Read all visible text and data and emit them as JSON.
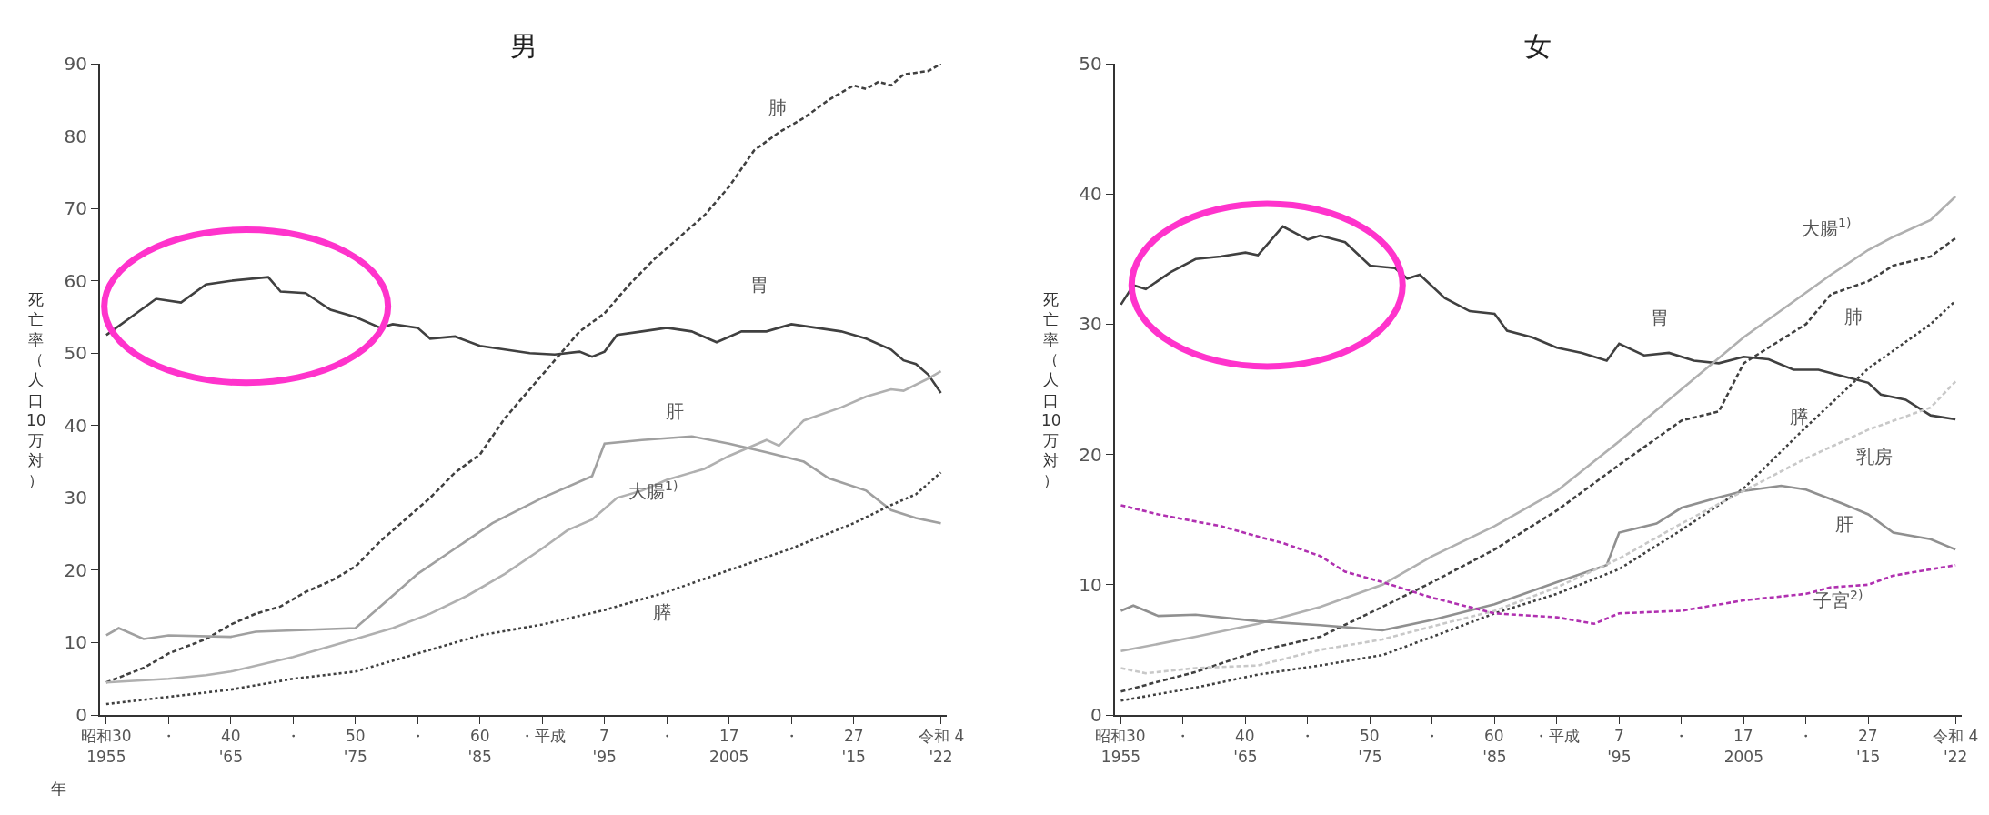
{
  "chart_data": [
    {
      "type": "line",
      "title": "男",
      "ylabel": "死亡率（人口10万対）",
      "xlim": [
        1954.5,
        2022.5
      ],
      "ylim": [
        0,
        90
      ],
      "yticks": [
        0,
        10,
        20,
        30,
        40,
        50,
        60,
        70,
        80,
        90
      ],
      "xticks": [
        1955,
        {
          "value": 1960,
          "label": null
        },
        {
          "value": 1965,
          "label": "'65"
        },
        {
          "value": 1970,
          "label": null
        },
        {
          "value": 1975,
          "label": "'75"
        },
        {
          "value": 1980,
          "label": null
        },
        {
          "value": 1985,
          "label": "'85"
        },
        {
          "value": 1990,
          "label": null
        },
        {
          "value": 1995,
          "label": "'95"
        },
        {
          "value": 2000,
          "label": null
        },
        2005,
        {
          "value": 2010,
          "label": null
        },
        {
          "value": 2015,
          "label": "'15"
        },
        {
          "value": 2022,
          "label": "'22"
        }
      ],
      "legend": false,
      "marker": "none",
      "series": [
        {
          "name": "胃",
          "color": "#404040",
          "line_style": "solid",
          "x": [
            1955,
            1957,
            1959,
            1961,
            1963,
            1965,
            1968,
            1969,
            1971,
            1973,
            1975,
            1977,
            1978,
            1980,
            1981,
            1983,
            1985,
            1987,
            1989,
            1991,
            1993,
            1994,
            1995,
            1996,
            1998,
            2000,
            2002,
            2004,
            2006,
            2008,
            2010,
            2012,
            2014,
            2016,
            2018,
            2019,
            2020,
            2021,
            2022
          ],
          "values": [
            52.5,
            55,
            57.5,
            57,
            59.5,
            60,
            60.5,
            58.5,
            58.3,
            56,
            55,
            53.5,
            54,
            53.5,
            52,
            52.3,
            51,
            50.5,
            50,
            49.8,
            50.2,
            49.5,
            50.2,
            52.5,
            53,
            53.5,
            53,
            51.5,
            53,
            53,
            54,
            53.5,
            53,
            52,
            50.5,
            49,
            48.5,
            47,
            44.5
          ]
        },
        {
          "name": "肺",
          "color": "#404040",
          "line_style": "dashed",
          "x": [
            1955,
            1958,
            1960,
            1963,
            1965,
            1967,
            1969,
            1971,
            1973,
            1975,
            1977,
            1979,
            1981,
            1983,
            1985,
            1987,
            1989,
            1991,
            1993,
            1995,
            1997,
            1999,
            2001,
            2003,
            2005,
            2007,
            2009,
            2011,
            2013,
            2015,
            2016,
            2017,
            2018,
            2019,
            2021,
            2022
          ],
          "values": [
            4.5,
            6.5,
            8.5,
            10.5,
            12.5,
            14,
            15,
            17,
            18.5,
            20.5,
            24,
            27,
            30,
            33.5,
            36,
            41,
            45,
            49,
            53,
            55.5,
            59.5,
            63,
            66,
            69,
            73,
            78,
            80.5,
            82.5,
            85,
            87,
            86.5,
            87.5,
            87,
            88.5,
            89,
            90
          ]
        },
        {
          "name": "肝",
          "color": "#a0a0a0",
          "line_style": "solid",
          "x": [
            1955,
            1956,
            1958,
            1960,
            1965,
            1967,
            1975,
            1977,
            1980,
            1983,
            1986,
            1990,
            1994,
            1995,
            1998,
            2002,
            2005,
            2008,
            2011,
            2013,
            2016,
            2018,
            2020,
            2022
          ],
          "values": [
            11,
            12,
            10.5,
            11,
            10.8,
            11.5,
            12,
            15,
            19.5,
            23,
            26.5,
            30,
            33,
            37.5,
            38,
            38.5,
            37.5,
            36.3,
            35,
            32.7,
            31,
            28.3,
            27.2,
            26.5
          ]
        },
        {
          "name": "大腸$^{1)}$",
          "color": "#b0b0b0",
          "line_style": "solid",
          "x": [
            1955,
            1960,
            1963,
            1965,
            1970,
            1975,
            1978,
            1981,
            1984,
            1987,
            1990,
            1992,
            1994,
            1995,
            1996,
            1998,
            2000,
            2003,
            2005,
            2008,
            2009,
            2011,
            2014,
            2016,
            2018,
            2019,
            2021,
            2022
          ],
          "values": [
            4.5,
            5,
            5.5,
            6,
            8,
            10.5,
            12,
            14,
            16.5,
            19.5,
            23,
            25.5,
            27,
            28.5,
            30,
            31,
            32.5,
            34,
            35.8,
            38,
            37.2,
            40.7,
            42.5,
            44,
            45,
            44.8,
            46.5,
            47.5
          ]
        },
        {
          "name": "膵",
          "color": "#404040",
          "line_style": "dotted",
          "x": [
            1955,
            1960,
            1965,
            1970,
            1975,
            1980,
            1985,
            1990,
            1995,
            2000,
            2005,
            2010,
            2015,
            2018,
            2020,
            2022
          ],
          "values": [
            1.5,
            2.5,
            3.5,
            5,
            6,
            8.5,
            11,
            12.5,
            14.5,
            17,
            20,
            23,
            26.5,
            29,
            30.5,
            33.5
          ]
        }
      ],
      "annotations": [
        "年",
        "昭和30",
        "・",
        "40",
        "・",
        "50",
        "・",
        "60",
        "・平成",
        "7",
        "・",
        "17",
        "・",
        "27",
        "令和 4"
      ]
    },
    {
      "type": "line",
      "title": "女",
      "ylabel": "死亡率（人口10万対）",
      "xlim": [
        1954.5,
        2022.5
      ],
      "ylim": [
        0,
        50
      ],
      "yticks": [
        0,
        10,
        20,
        30,
        40,
        50
      ],
      "xticks": [
        1955,
        {
          "value": 1960,
          "label": null
        },
        {
          "value": 1965,
          "label": "'65"
        },
        {
          "value": 1970,
          "label": null
        },
        {
          "value": 1975,
          "label": "'75"
        },
        {
          "value": 1980,
          "label": null
        },
        {
          "value": 1985,
          "label": "'85"
        },
        {
          "value": 1990,
          "label": null
        },
        {
          "value": 1995,
          "label": "'95"
        },
        {
          "value": 2000,
          "label": null
        },
        2005,
        {
          "value": 2010,
          "label": null
        },
        {
          "value": 2015,
          "label": "'15"
        },
        {
          "value": 2022,
          "label": "'22"
        }
      ],
      "legend": false,
      "marker": "none",
      "annotations": [
        "昭和30",
        "・",
        "40",
        "・",
        "50",
        "・",
        "60",
        "・平成",
        "7",
        "・",
        "17",
        "・",
        "27",
        "令和 4"
      ],
      "series": [
        {
          "name": "胃",
          "color": "#404040",
          "line_style": "solid",
          "x": [
            1955,
            1956,
            1957,
            1959,
            1961,
            1963,
            1965,
            1966,
            1968,
            1970,
            1971,
            1973,
            1975,
            1977,
            1978,
            1979,
            1981,
            1983,
            1985,
            1986,
            1988,
            1990,
            1992,
            1994,
            1995,
            1997,
            1999,
            2001,
            2003,
            2005,
            2007,
            2009,
            2011,
            2013,
            2015,
            2016,
            2018,
            2020,
            2022
          ],
          "values": [
            31.5,
            33,
            32.7,
            34,
            35,
            35.2,
            35.5,
            35.3,
            37.5,
            36.5,
            36.8,
            36.3,
            34.5,
            34.3,
            33.5,
            33.8,
            32,
            31,
            30.8,
            29.5,
            29,
            28.2,
            27.8,
            27.2,
            28.5,
            27.6,
            27.8,
            27.2,
            27,
            27.5,
            27.3,
            26.5,
            26.5,
            26,
            25.5,
            24.6,
            24.2,
            23,
            22.7
          ]
        },
        {
          "name": "大腸$^{1)}$",
          "color": "#b0b0b0",
          "line_style": "solid",
          "x": [
            1955,
            1961,
            1966,
            1971,
            1976,
            1980,
            1985,
            1990,
            1995,
            2000,
            2005,
            2012,
            2015,
            2017,
            2020,
            2022
          ],
          "values": [
            4.9,
            6,
            7,
            8.3,
            10,
            12.2,
            14.5,
            17.2,
            21,
            25,
            29,
            33.8,
            35.7,
            36.7,
            38,
            39.8
          ]
        },
        {
          "name": "肺",
          "color": "#404040",
          "line_style": "dashed",
          "x": [
            1955,
            1961,
            1966,
            1971,
            1976,
            1980,
            1985,
            1990,
            1995,
            2000,
            2003,
            2005,
            2010,
            2012,
            2015,
            2017,
            2020,
            2022
          ],
          "values": [
            1.8,
            3.3,
            4.9,
            6,
            8.3,
            10.2,
            12.7,
            15.7,
            19.2,
            22.6,
            23.3,
            27,
            30,
            32.3,
            33.3,
            34.5,
            35.2,
            36.6
          ]
        },
        {
          "name": "膵",
          "color": "#404040",
          "line_style": "dotted",
          "x": [
            1955,
            1961,
            1966,
            1971,
            1976,
            1980,
            1985,
            1990,
            1995,
            2000,
            2005,
            2010,
            2015,
            2020,
            2022
          ],
          "values": [
            1.1,
            2.1,
            3.1,
            3.8,
            4.6,
            6,
            7.8,
            9.3,
            11.2,
            14.2,
            17.4,
            22.1,
            26.6,
            30,
            31.8
          ]
        },
        {
          "name": "肝",
          "color": "#909090",
          "line_style": "solid",
          "x": [
            1955,
            1956,
            1958,
            1961,
            1966,
            1971,
            1976,
            1980,
            1985,
            1990,
            1994,
            1995,
            1998,
            2000,
            2003,
            2005,
            2008,
            2010,
            2013,
            2015,
            2017,
            2020,
            2022
          ],
          "values": [
            8,
            8.4,
            7.6,
            7.7,
            7.2,
            6.9,
            6.5,
            7.3,
            8.5,
            10.2,
            11.5,
            14,
            14.7,
            15.9,
            16.7,
            17.2,
            17.6,
            17.3,
            16.2,
            15.4,
            14,
            13.5,
            12.7
          ]
        },
        {
          "name": "乳房",
          "color": "#c8c8c8",
          "line_style": "dashed",
          "x": [
            1955,
            1957,
            1961,
            1966,
            1971,
            1976,
            1980,
            1985,
            1990,
            1995,
            2000,
            2005,
            2010,
            2015,
            2020,
            2022
          ],
          "values": [
            3.6,
            3.2,
            3.6,
            3.8,
            5,
            5.8,
            6.8,
            8,
            9.8,
            12,
            14.7,
            17.2,
            19.7,
            21.9,
            23.6,
            25.6
          ]
        },
        {
          "name": "子宮$^{2)}$",
          "color": "#b030b0",
          "line_style": "dashed",
          "x": [
            1955,
            1958,
            1963,
            1966,
            1968,
            1971,
            1973,
            1976,
            1980,
            1985,
            1990,
            1993,
            1995,
            2000,
            2005,
            2010,
            2012,
            2015,
            2017,
            2022
          ],
          "values": [
            16.1,
            15.4,
            14.5,
            13.7,
            13.2,
            12.2,
            11,
            10.2,
            9,
            7.8,
            7.5,
            7,
            7.8,
            8,
            8.8,
            9.3,
            9.8,
            10,
            10.7,
            11.5
          ]
        }
      ]
    }
  ]
}
